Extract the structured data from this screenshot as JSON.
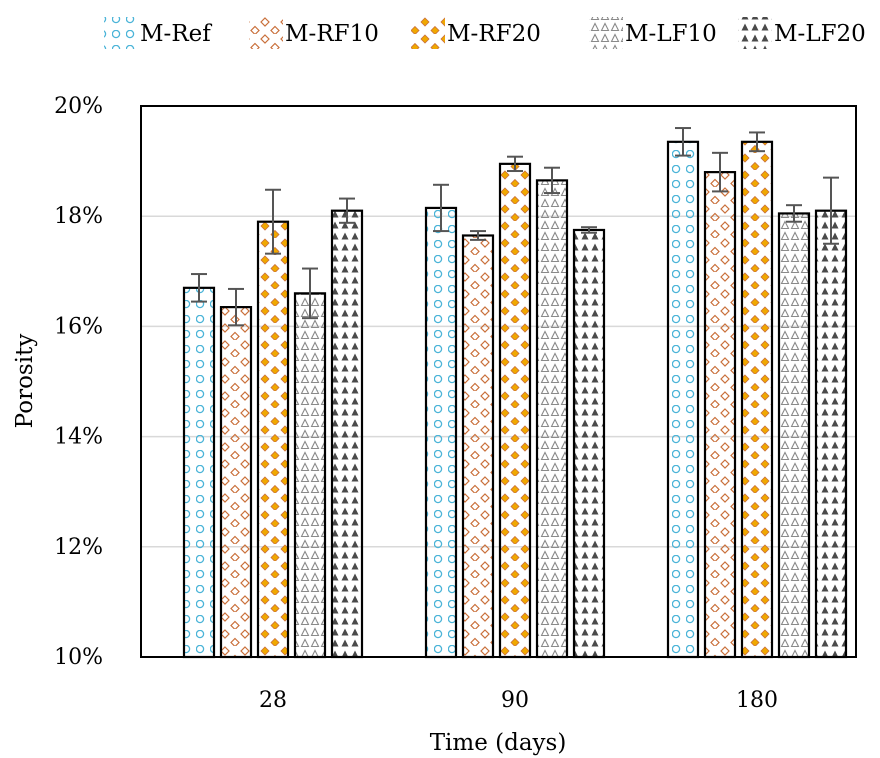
{
  "chart_data": {
    "type": "bar",
    "title": "",
    "xlabel": "Time (days)",
    "ylabel": "Porosity",
    "ylim": [
      10,
      20
    ],
    "yticks": [
      "10%",
      "12%",
      "14%",
      "16%",
      "18%",
      "20%"
    ],
    "ytick_values": [
      10,
      12,
      14,
      16,
      18,
      20
    ],
    "categories": [
      "28",
      "90",
      "180"
    ],
    "grid": true,
    "legend_position": "top",
    "series": [
      {
        "name": "M-Ref",
        "values": [
          16.7,
          18.15,
          19.35
        ],
        "errors": [
          0.25,
          0.42,
          0.25
        ],
        "pattern": "circles",
        "color": "#4bb4d8"
      },
      {
        "name": "M-RF10",
        "values": [
          16.35,
          17.65,
          18.8
        ],
        "errors": [
          0.33,
          0.08,
          0.35
        ],
        "pattern": "hollow-diamonds",
        "color": "#c96f3a"
      },
      {
        "name": "M-RF20",
        "values": [
          17.9,
          18.95,
          19.35
        ],
        "errors": [
          0.58,
          0.13,
          0.17
        ],
        "pattern": "filled-diamonds",
        "color": "#f0a800"
      },
      {
        "name": "M-LF10",
        "values": [
          16.6,
          18.65,
          18.05
        ],
        "errors": [
          0.45,
          0.23,
          0.15
        ],
        "pattern": "hollow-triangles",
        "color": "#8a8a8a"
      },
      {
        "name": "M-LF20",
        "values": [
          18.1,
          17.75,
          18.1
        ],
        "errors": [
          0.22,
          0.05,
          0.6
        ],
        "pattern": "filled-triangles",
        "color": "#4a4a4a"
      }
    ]
  }
}
